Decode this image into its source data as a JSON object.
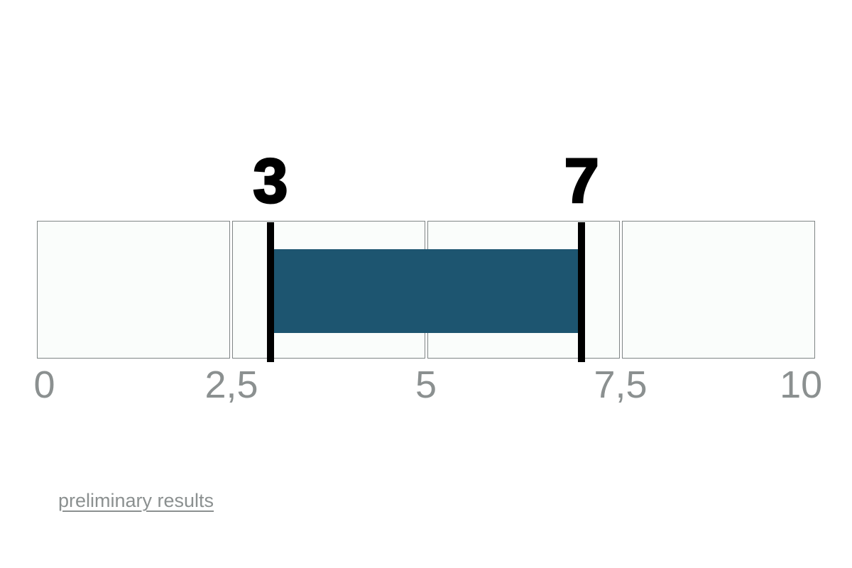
{
  "page": {
    "background": "#ffffff"
  },
  "chart_data": {
    "type": "bar",
    "subtype": "horizontal-range-indicator",
    "title": "",
    "axis": {
      "min": 0,
      "max": 10,
      "tick_values": [
        0,
        2.5,
        5,
        7.5,
        10
      ],
      "tick_labels": [
        "0",
        "2,5",
        "5",
        "7,5",
        "10"
      ],
      "segments": 4,
      "grid": "segmented-cells"
    },
    "range": {
      "low": 3,
      "high": 7,
      "low_label": "3",
      "high_label": "7"
    },
    "legend": "none",
    "colors": {
      "bar_fill": "#1d5570",
      "marker": "#000000",
      "cell_background": "#fafdfb",
      "cell_border": "#7f8585",
      "tick_label": "#8b9090",
      "range_label": "#000000"
    }
  },
  "footer": {
    "link_label": "preliminary results",
    "link_color": "#8b9090"
  }
}
